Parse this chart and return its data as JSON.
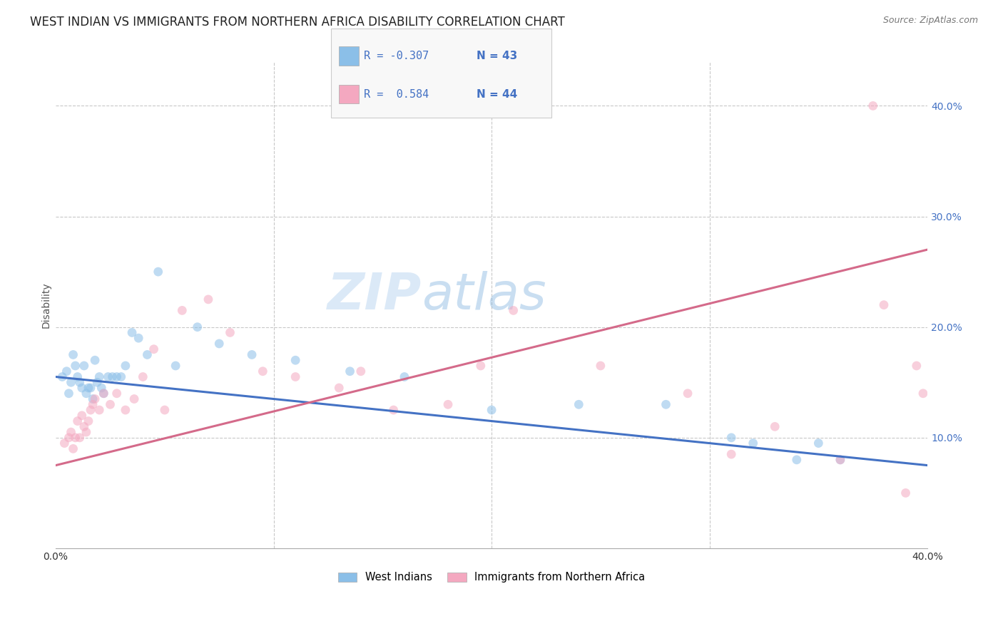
{
  "title": "WEST INDIAN VS IMMIGRANTS FROM NORTHERN AFRICA DISABILITY CORRELATION CHART",
  "source": "Source: ZipAtlas.com",
  "ylabel": "Disability",
  "watermark": "ZIPatlas",
  "legend_label1": "West Indians",
  "legend_label2": "Immigrants from Northern Africa",
  "blue_color": "#8bbfe8",
  "pink_color": "#f4a8c0",
  "blue_line_color": "#4472c4",
  "pink_line_color": "#d46a8a",
  "xmin": 0.0,
  "xmax": 0.4,
  "ymin": 0.0,
  "ymax": 0.44,
  "right_yticks": [
    0.1,
    0.2,
    0.3,
    0.4
  ],
  "right_ytick_labels": [
    "10.0%",
    "20.0%",
    "30.0%",
    "40.0%"
  ],
  "blue_line_y0": 0.155,
  "blue_line_y1": 0.075,
  "pink_line_y0": 0.075,
  "pink_line_y1": 0.27,
  "grid_color": "#c8c8c8",
  "background_color": "#ffffff",
  "title_fontsize": 12,
  "axis_label_fontsize": 10,
  "tick_fontsize": 10,
  "marker_size": 85,
  "marker_alpha": 0.55,
  "blue_x": [
    0.003,
    0.005,
    0.006,
    0.007,
    0.008,
    0.009,
    0.01,
    0.011,
    0.012,
    0.013,
    0.014,
    0.015,
    0.016,
    0.017,
    0.018,
    0.019,
    0.02,
    0.021,
    0.022,
    0.024,
    0.026,
    0.028,
    0.03,
    0.032,
    0.035,
    0.038,
    0.042,
    0.047,
    0.055,
    0.065,
    0.075,
    0.09,
    0.11,
    0.135,
    0.16,
    0.2,
    0.24,
    0.28,
    0.31,
    0.32,
    0.34,
    0.35,
    0.36
  ],
  "blue_y": [
    0.155,
    0.16,
    0.14,
    0.15,
    0.175,
    0.165,
    0.155,
    0.15,
    0.145,
    0.165,
    0.14,
    0.145,
    0.145,
    0.135,
    0.17,
    0.15,
    0.155,
    0.145,
    0.14,
    0.155,
    0.155,
    0.155,
    0.155,
    0.165,
    0.195,
    0.19,
    0.175,
    0.25,
    0.165,
    0.2,
    0.185,
    0.175,
    0.17,
    0.16,
    0.155,
    0.125,
    0.13,
    0.13,
    0.1,
    0.095,
    0.08,
    0.095,
    0.08
  ],
  "pink_x": [
    0.004,
    0.006,
    0.007,
    0.008,
    0.009,
    0.01,
    0.011,
    0.012,
    0.013,
    0.014,
    0.015,
    0.016,
    0.017,
    0.018,
    0.02,
    0.022,
    0.025,
    0.028,
    0.032,
    0.036,
    0.04,
    0.045,
    0.05,
    0.058,
    0.07,
    0.08,
    0.095,
    0.11,
    0.13,
    0.155,
    0.18,
    0.21,
    0.25,
    0.29,
    0.33,
    0.36,
    0.38,
    0.39,
    0.395,
    0.398,
    0.14,
    0.195,
    0.31,
    0.375
  ],
  "pink_y": [
    0.095,
    0.1,
    0.105,
    0.09,
    0.1,
    0.115,
    0.1,
    0.12,
    0.11,
    0.105,
    0.115,
    0.125,
    0.13,
    0.135,
    0.125,
    0.14,
    0.13,
    0.14,
    0.125,
    0.135,
    0.155,
    0.18,
    0.125,
    0.215,
    0.225,
    0.195,
    0.16,
    0.155,
    0.145,
    0.125,
    0.13,
    0.215,
    0.165,
    0.14,
    0.11,
    0.08,
    0.22,
    0.05,
    0.165,
    0.14,
    0.16,
    0.165,
    0.085,
    0.4
  ]
}
